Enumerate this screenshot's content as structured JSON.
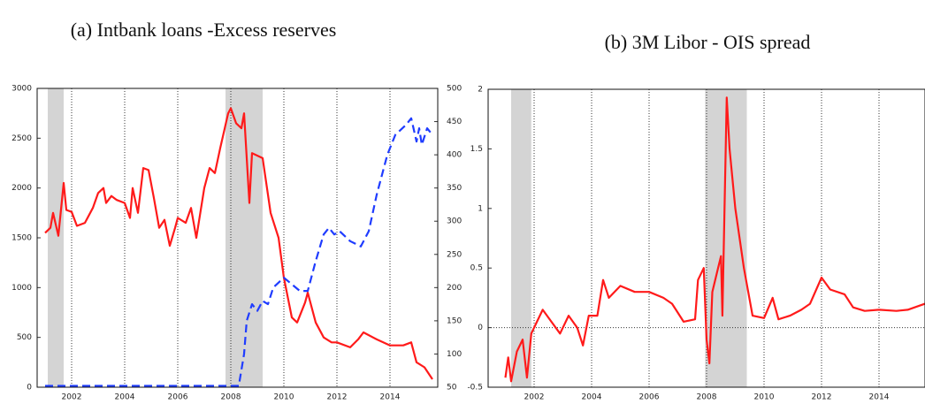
{
  "chart_data": [
    {
      "type": "line",
      "title": "(a) Intbank loans -Excess reserves",
      "xlim": [
        2000.7,
        2015.8
      ],
      "xticks": [
        2002,
        2004,
        2006,
        2008,
        2010,
        2012,
        2014
      ],
      "ylim": [
        0,
        3000
      ],
      "yticks": [
        0,
        500,
        1000,
        1500,
        2000,
        2500,
        3000
      ],
      "y2lim": [
        50,
        500
      ],
      "y2ticks": [
        50,
        100,
        150,
        200,
        250,
        300,
        350,
        400,
        450,
        500
      ],
      "grid": "x-dotted",
      "shaded": [
        [
          2001.1,
          2001.7
        ],
        [
          2007.8,
          2009.2
        ]
      ],
      "series": [
        {
          "color": "#ff1a1a",
          "dash": false,
          "x": [
            2001.0,
            2001.2,
            2001.3,
            2001.5,
            2001.7,
            2001.8,
            2002.0,
            2002.2,
            2002.5,
            2002.8,
            2003.0,
            2003.2,
            2003.3,
            2003.5,
            2003.7,
            2004.0,
            2004.2,
            2004.3,
            2004.5,
            2004.7,
            2004.9,
            2005.1,
            2005.3,
            2005.5,
            2005.7,
            2005.9,
            2006.0,
            2006.3,
            2006.5,
            2006.7,
            2007.0,
            2007.2,
            2007.4,
            2007.6,
            2007.9,
            2008.0,
            2008.2,
            2008.4,
            2008.5,
            2008.7,
            2008.8,
            2009.2,
            2009.5,
            2009.8,
            2010.0,
            2010.3,
            2010.5,
            2010.8,
            2010.9,
            2011.2,
            2011.5,
            2011.8,
            2012.0,
            2012.5,
            2012.8,
            2013.0,
            2013.5,
            2014.0,
            2014.5,
            2014.8,
            2015.0,
            2015.3,
            2015.6
          ],
          "values": [
            1550,
            1600,
            1750,
            1520,
            2050,
            1780,
            1760,
            1620,
            1650,
            1800,
            1950,
            2000,
            1850,
            1920,
            1880,
            1850,
            1700,
            2000,
            1750,
            2200,
            2180,
            1900,
            1600,
            1680,
            1420,
            1600,
            1700,
            1650,
            1800,
            1500,
            2000,
            2200,
            2150,
            2400,
            2750,
            2800,
            2650,
            2600,
            2750,
            1850,
            2350,
            2300,
            1750,
            1500,
            1100,
            700,
            650,
            850,
            950,
            650,
            500,
            450,
            450,
            400,
            480,
            550,
            480,
            420,
            420,
            450,
            250,
            200,
            80
          ]
        },
        {
          "color": "#1f3cff",
          "dash": true,
          "axis": "y2",
          "x": [
            2001.0,
            2008.3,
            2008.5,
            2008.6,
            2008.8,
            2009.0,
            2009.2,
            2009.4,
            2009.6,
            2010.0,
            2010.3,
            2010.6,
            2010.9,
            2011.2,
            2011.5,
            2011.7,
            2011.9,
            2012.1,
            2012.5,
            2012.9,
            2013.2,
            2013.5,
            2013.9,
            2014.2,
            2014.6,
            2014.8,
            2015.0,
            2015.1,
            2015.2,
            2015.4,
            2015.6
          ],
          "values": [
            52,
            52,
            100,
            150,
            175,
            165,
            180,
            175,
            200,
            215,
            205,
            195,
            195,
            240,
            280,
            290,
            280,
            285,
            270,
            262,
            285,
            340,
            400,
            430,
            445,
            455,
            420,
            440,
            415,
            440,
            430
          ]
        }
      ]
    },
    {
      "type": "line",
      "title": "(b) 3M Libor - OIS spread",
      "xlim": [
        2000.4,
        2015.6
      ],
      "xticks": [
        2002,
        2004,
        2006,
        2008,
        2010,
        2012,
        2014
      ],
      "ylim": [
        -0.5,
        2
      ],
      "yticks": [
        -0.5,
        0,
        0.5,
        1,
        1.5,
        2
      ],
      "grid": "x-dotted",
      "reference_line": 0,
      "shaded": [
        [
          2001.2,
          2001.9
        ],
        [
          2007.95,
          2009.4
        ]
      ],
      "series": [
        {
          "color": "#ff1a1a",
          "dash": false,
          "x": [
            2001.0,
            2001.1,
            2001.2,
            2001.4,
            2001.6,
            2001.75,
            2001.9,
            2002.1,
            2002.3,
            2002.6,
            2002.9,
            2003.2,
            2003.5,
            2003.7,
            2003.9,
            2004.2,
            2004.4,
            2004.6,
            2005.0,
            2005.5,
            2006.0,
            2006.5,
            2006.8,
            2007.2,
            2007.6,
            2007.7,
            2007.9,
            2008.0,
            2008.1,
            2008.2,
            2008.4,
            2008.5,
            2008.55,
            2008.7,
            2008.8,
            2009.0,
            2009.3,
            2009.6,
            2010.0,
            2010.3,
            2010.5,
            2010.9,
            2011.3,
            2011.6,
            2012.0,
            2012.3,
            2012.8,
            2013.1,
            2013.5,
            2014.0,
            2014.6,
            2015.0,
            2015.6
          ],
          "values": [
            -0.42,
            -0.25,
            -0.45,
            -0.2,
            -0.1,
            -0.42,
            -0.05,
            0.05,
            0.15,
            0.05,
            -0.05,
            0.1,
            0.0,
            -0.15,
            0.1,
            0.1,
            0.4,
            0.25,
            0.35,
            0.3,
            0.3,
            0.25,
            0.2,
            0.05,
            0.07,
            0.4,
            0.5,
            -0.1,
            -0.3,
            0.3,
            0.5,
            0.6,
            0.1,
            1.93,
            1.5,
            1.0,
            0.5,
            0.1,
            0.08,
            0.25,
            0.07,
            0.1,
            0.15,
            0.2,
            0.42,
            0.32,
            0.28,
            0.17,
            0.14,
            0.15,
            0.14,
            0.15,
            0.2
          ]
        }
      ]
    }
  ]
}
